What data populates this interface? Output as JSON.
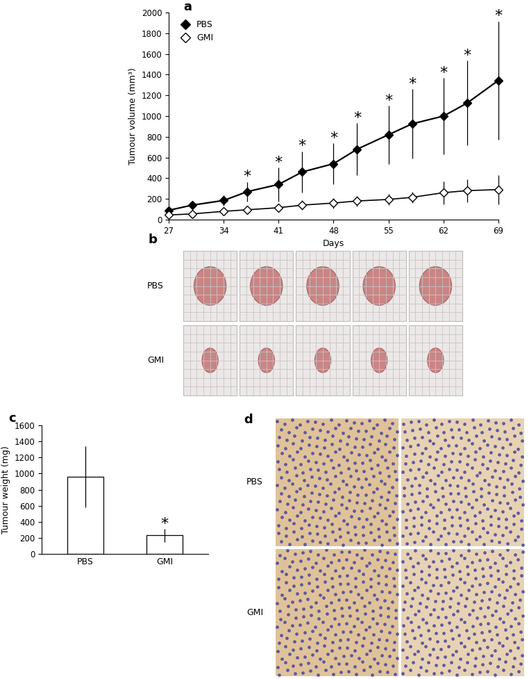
{
  "chart_data": [
    {
      "panel_label": "a",
      "type": "line",
      "x_label": "Days",
      "y_label": "Tumour volume (mm³)",
      "x": [
        27,
        30,
        34,
        37,
        41,
        44,
        48,
        51,
        55,
        58,
        62,
        65,
        69
      ],
      "xlim": [
        27,
        69
      ],
      "xticks": [
        27,
        34,
        41,
        48,
        55,
        62,
        69
      ],
      "ylim": [
        0,
        2000
      ],
      "yticks": [
        0,
        200,
        400,
        600,
        800,
        1000,
        1200,
        1400,
        1600,
        1800,
        2000
      ],
      "legend": "upper left",
      "series": [
        {
          "name": "PBS",
          "color": "#000000",
          "marker": "filled_diamond",
          "values": [
            90,
            140,
            185,
            270,
            340,
            460,
            540,
            680,
            820,
            925,
            1000,
            1125,
            1345
          ],
          "errors": [
            20,
            40,
            50,
            95,
            165,
            200,
            195,
            250,
            280,
            335,
            370,
            410,
            570
          ]
        },
        {
          "name": "GMI",
          "color": "#000000",
          "marker": "open_diamond",
          "values": [
            45,
            55,
            80,
            95,
            115,
            140,
            160,
            180,
            195,
            215,
            260,
            280,
            290
          ],
          "errors": [
            10,
            15,
            20,
            25,
            30,
            45,
            50,
            50,
            55,
            55,
            110,
            110,
            140
          ]
        }
      ],
      "annotations": [
        {
          "x": 37,
          "text": "*"
        },
        {
          "x": 41,
          "text": "*"
        },
        {
          "x": 44,
          "text": "*"
        },
        {
          "x": 48,
          "text": "*"
        },
        {
          "x": 51,
          "text": "*"
        },
        {
          "x": 55,
          "text": "*"
        },
        {
          "x": 58,
          "text": "*"
        },
        {
          "x": 62,
          "text": "*"
        },
        {
          "x": 65,
          "text": "*"
        },
        {
          "x": 69,
          "text": "*"
        }
      ]
    },
    {
      "panel_label": "c",
      "type": "bar",
      "y_label": "Tumour weight (mg)",
      "categories": [
        "PBS",
        "GMI"
      ],
      "values": [
        960,
        230
      ],
      "errors": [
        380,
        80
      ],
      "color": "#ffffff",
      "ylim": [
        0,
        1600
      ],
      "yticks": [
        0,
        200,
        400,
        600,
        800,
        1000,
        1200,
        1400,
        1600
      ],
      "annotations": [
        {
          "category": "GMI",
          "text": "*"
        }
      ]
    }
  ],
  "image_panels": [
    {
      "panel_label": "b",
      "rows": [
        "PBS",
        "GMI"
      ],
      "columns": 5
    },
    {
      "panel_label": "d",
      "rows": [
        "PBS",
        "GMI"
      ],
      "columns": 2
    }
  ]
}
